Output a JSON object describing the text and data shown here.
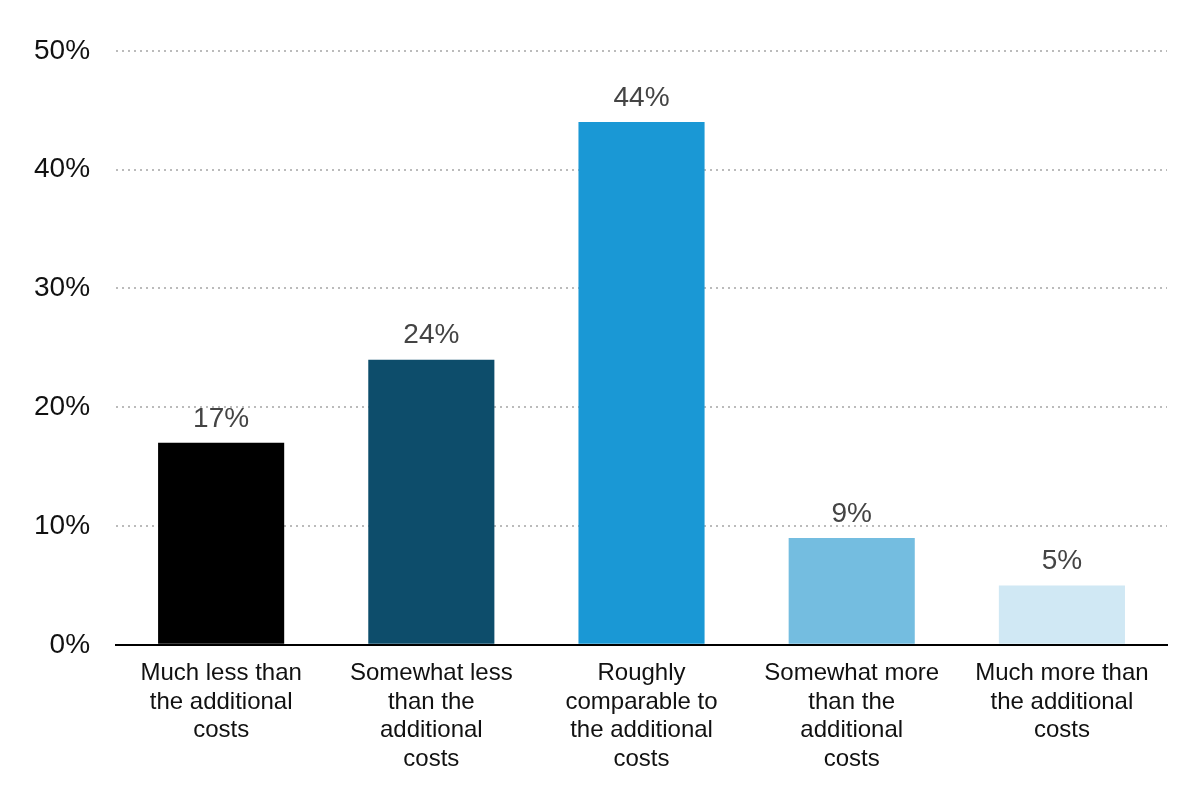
{
  "chart_data": {
    "type": "bar",
    "categories": [
      "Much less than the additional costs",
      "Somewhat less than the additional costs",
      "Roughly comparable to the additional costs",
      "Somewhat more than the additional costs",
      "Much more than the additional costs"
    ],
    "values": [
      17,
      24,
      44,
      9,
      5
    ],
    "colors": [
      "#000000",
      "#0d4d6b",
      "#1a98d5",
      "#74bde0",
      "#d0e8f4"
    ],
    "value_labels": [
      "17%",
      "24%",
      "44%",
      "9%",
      "5%"
    ],
    "ylim": [
      0,
      50
    ],
    "yticks": [
      {
        "value": 0,
        "label": "0%"
      },
      {
        "value": 10,
        "label": "10%"
      },
      {
        "value": 20,
        "label": "20%"
      },
      {
        "value": 30,
        "label": "30%"
      },
      {
        "value": 40,
        "label": "40%"
      },
      {
        "value": 50,
        "label": "50%"
      }
    ],
    "grid": "y",
    "legend": false
  }
}
